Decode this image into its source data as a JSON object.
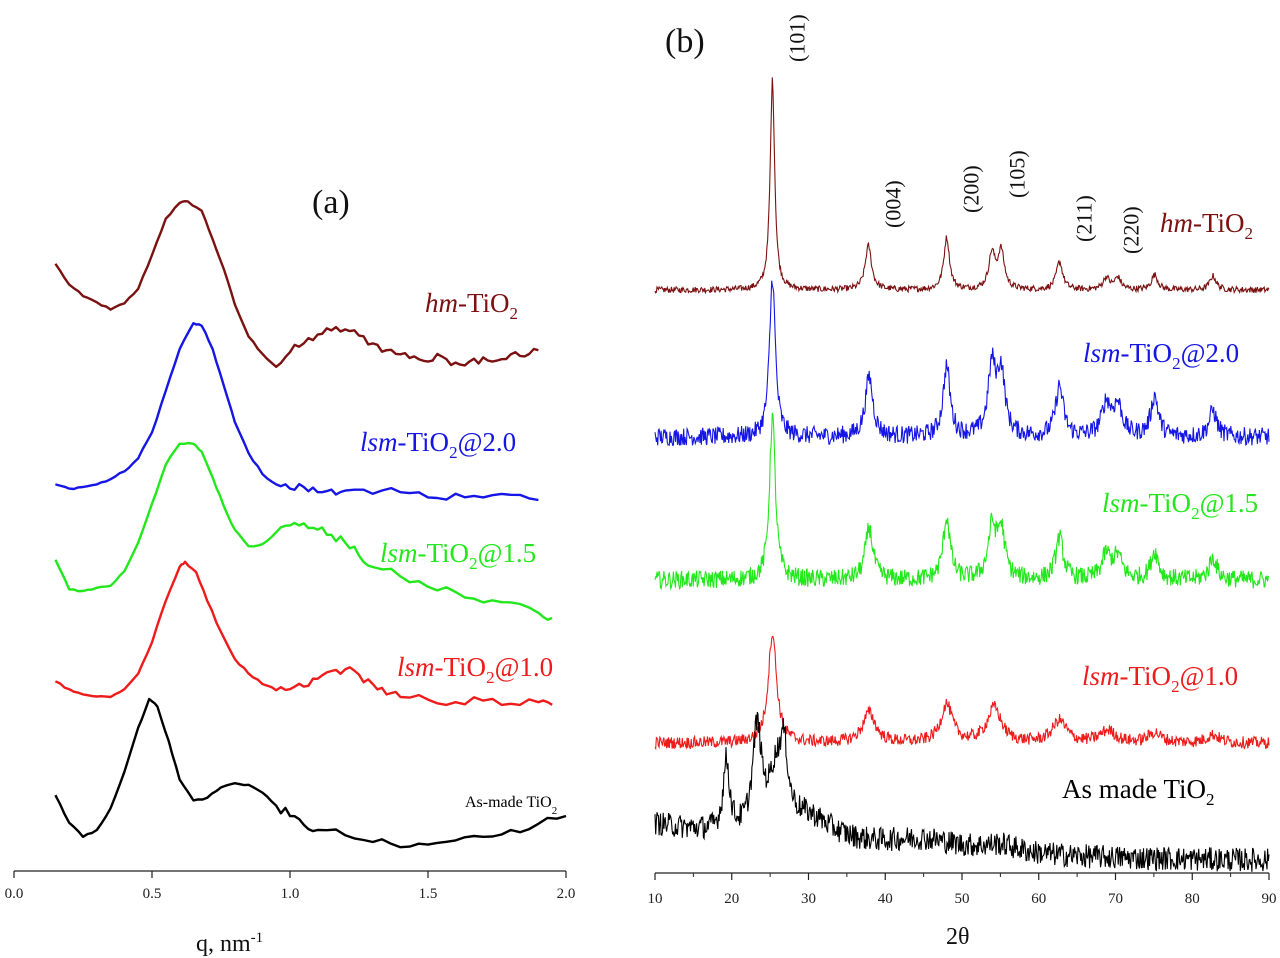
{
  "chart_data": [
    {
      "type": "line",
      "panel": "(a)",
      "xlabel": "q, nm",
      "xlabel_sup": "-1",
      "ylabel": "",
      "xlim": [
        0.0,
        2.0
      ],
      "xticks": [
        "0.0",
        "0.5",
        "1.0",
        "1.5",
        "2.0"
      ],
      "xtick_values": [
        0.0,
        0.5,
        1.0,
        1.5,
        2.0
      ],
      "y_axis_visible": false,
      "series": [
        {
          "name": "hm-TiO2",
          "label_italic": "hm",
          "label_main": "-TiO",
          "label_sub": "2",
          "label_tail": "",
          "color": "#7b1111",
          "x": [
            0.15,
            0.2,
            0.25,
            0.3,
            0.35,
            0.4,
            0.45,
            0.5,
            0.55,
            0.6,
            0.63,
            0.68,
            0.72,
            0.76,
            0.8,
            0.85,
            0.9,
            0.95,
            1.0,
            1.05,
            1.1,
            1.15,
            1.2,
            1.25,
            1.3,
            1.35,
            1.4,
            1.45,
            1.5,
            1.55,
            1.6,
            1.65,
            1.7,
            1.75,
            1.8,
            1.85,
            1.9
          ],
          "y": [
            2.08,
            1.68,
            1.46,
            1.34,
            1.2,
            1.32,
            1.6,
            2.25,
            2.95,
            3.25,
            3.28,
            3.1,
            2.55,
            1.98,
            1.3,
            0.68,
            0.35,
            0.1,
            0.38,
            0.55,
            0.72,
            0.8,
            0.82,
            0.7,
            0.55,
            0.42,
            0.34,
            0.3,
            0.2,
            0.3,
            0.18,
            0.2,
            0.28,
            0.22,
            0.34,
            0.3,
            0.42
          ]
        },
        {
          "name": "lsm-TiO2@2.0",
          "label_italic": "lsm",
          "label_main": "-TiO",
          "label_sub": "2",
          "label_tail": "@2.0",
          "color": "#1515e6",
          "x": [
            0.15,
            0.2,
            0.25,
            0.3,
            0.35,
            0.4,
            0.45,
            0.5,
            0.55,
            0.6,
            0.65,
            0.68,
            0.72,
            0.76,
            0.8,
            0.85,
            0.9,
            0.95,
            1.0,
            1.05,
            1.1,
            1.15,
            1.2,
            1.3,
            1.4,
            1.5,
            1.6,
            1.7,
            1.8,
            1.9
          ],
          "y": [
            0.3,
            0.22,
            0.25,
            0.3,
            0.4,
            0.55,
            0.8,
            1.3,
            2.1,
            2.9,
            3.4,
            3.35,
            2.9,
            2.2,
            1.5,
            0.9,
            0.5,
            0.3,
            0.22,
            0.25,
            0.15,
            0.2,
            0.18,
            0.12,
            0.15,
            0.05,
            0.12,
            0.05,
            0.1,
            0.0
          ]
        },
        {
          "name": "lsm-TiO2@1.5",
          "label_italic": "lsm",
          "label_main": "-TiO",
          "label_sub": "2",
          "label_tail": "@1.5",
          "color": "#22e81b",
          "x": [
            0.15,
            0.2,
            0.25,
            0.3,
            0.35,
            0.4,
            0.45,
            0.5,
            0.55,
            0.6,
            0.65,
            0.68,
            0.72,
            0.76,
            0.8,
            0.85,
            0.9,
            0.95,
            1.0,
            1.05,
            1.1,
            1.15,
            1.2,
            1.25,
            1.3,
            1.4,
            1.5,
            1.6,
            1.7,
            1.8,
            1.9,
            1.95
          ],
          "y": [
            1.12,
            0.55,
            0.52,
            0.58,
            0.62,
            0.9,
            1.45,
            2.2,
            2.95,
            3.35,
            3.35,
            3.2,
            2.7,
            2.15,
            1.7,
            1.38,
            1.42,
            1.65,
            1.78,
            1.82,
            1.7,
            1.6,
            1.45,
            1.2,
            0.98,
            0.8,
            0.6,
            0.5,
            0.3,
            0.3,
            0.1,
            0.0
          ]
        },
        {
          "name": "lsm-TiO2@1.0",
          "label_italic": "lsm",
          "label_main": "-TiO",
          "label_sub": "2",
          "label_tail": "@1.0",
          "color": "#ee1b1b",
          "x": [
            0.15,
            0.2,
            0.25,
            0.3,
            0.35,
            0.4,
            0.45,
            0.5,
            0.55,
            0.6,
            0.62,
            0.66,
            0.7,
            0.75,
            0.8,
            0.85,
            0.9,
            0.95,
            1.0,
            1.05,
            1.1,
            1.15,
            1.2,
            1.25,
            1.3,
            1.35,
            1.4,
            1.5,
            1.6,
            1.7,
            1.8,
            1.9,
            1.95
          ],
          "y": [
            0.55,
            0.4,
            0.3,
            0.26,
            0.25,
            0.4,
            0.7,
            1.3,
            2.1,
            2.75,
            2.85,
            2.65,
            2.1,
            1.5,
            0.98,
            0.7,
            0.5,
            0.38,
            0.4,
            0.45,
            0.6,
            0.75,
            0.78,
            0.68,
            0.5,
            0.3,
            0.25,
            0.2,
            0.15,
            0.18,
            0.12,
            0.15,
            0.1
          ]
        },
        {
          "name": "As-made TiO2",
          "label_italic": "",
          "label_main": "As-made TiO",
          "label_sub": "2",
          "label_tail": "",
          "color": "#000000",
          "x": [
            0.15,
            0.2,
            0.25,
            0.3,
            0.35,
            0.4,
            0.45,
            0.49,
            0.52,
            0.56,
            0.6,
            0.65,
            0.7,
            0.75,
            0.8,
            0.85,
            0.9,
            0.95,
            1.0,
            1.05,
            1.1,
            1.2,
            1.3,
            1.4,
            1.5,
            1.6,
            1.7,
            1.8,
            1.9,
            2.0
          ],
          "y": [
            1.15,
            0.62,
            0.35,
            0.48,
            0.9,
            1.6,
            2.45,
            3.0,
            2.85,
            2.2,
            1.45,
            1.05,
            1.1,
            1.3,
            1.38,
            1.35,
            1.2,
            0.95,
            0.75,
            0.58,
            0.48,
            0.38,
            0.25,
            0.15,
            0.2,
            0.28,
            0.35,
            0.48,
            0.6,
            0.75
          ]
        }
      ]
    },
    {
      "type": "line",
      "panel": "(b)",
      "xlabel": "2θ",
      "ylabel": "",
      "xlim": [
        10,
        90
      ],
      "xticks": [
        "10",
        "20",
        "30",
        "40",
        "50",
        "60",
        "70",
        "80",
        "90"
      ],
      "xtick_values": [
        10,
        20,
        30,
        40,
        50,
        60,
        70,
        80,
        90
      ],
      "y_axis_visible": false,
      "plane_labels": [
        {
          "text": "(101)",
          "x": 25.3
        },
        {
          "text": "(004)",
          "x": 37.8
        },
        {
          "text": "(200)",
          "x": 48.0
        },
        {
          "text": "(105)",
          "x": 54.0
        },
        {
          "text": "(211)",
          "x": 62.7
        },
        {
          "text": "(220)",
          "x": 68.8
        }
      ],
      "series": [
        {
          "name": "hm-TiO2",
          "label_italic": "hm",
          "label_main": "-TiO",
          "label_sub": "2",
          "label_tail": "",
          "color": "#7b1111",
          "peaks": [
            [
              25.3,
              210,
              0.35
            ],
            [
              37.8,
              44,
              0.5
            ],
            [
              48.0,
              52,
              0.45
            ],
            [
              53.9,
              35,
              0.5
            ],
            [
              55.1,
              38,
              0.5
            ],
            [
              62.7,
              28,
              0.5
            ],
            [
              68.8,
              12,
              0.5
            ],
            [
              70.3,
              12,
              0.5
            ],
            [
              75.1,
              15,
              0.5
            ],
            [
              82.7,
              14,
              0.5
            ]
          ],
          "noise": 3
        },
        {
          "name": "lsm-TiO2@2.0",
          "label_italic": "lsm",
          "label_main": "-TiO",
          "label_sub": "2",
          "label_tail": "@2.0",
          "color": "#1515e6",
          "peaks": [
            [
              25.3,
              160,
              0.45
            ],
            [
              37.9,
              60,
              0.6
            ],
            [
              48.0,
              70,
              0.55
            ],
            [
              53.9,
              68,
              0.6
            ],
            [
              55.1,
              62,
              0.6
            ],
            [
              62.7,
              50,
              0.6
            ],
            [
              68.8,
              32,
              0.7
            ],
            [
              70.3,
              30,
              0.7
            ],
            [
              75.1,
              40,
              0.6
            ],
            [
              82.7,
              26,
              0.6
            ]
          ],
          "noise": 9
        },
        {
          "name": "lsm-TiO2@1.5",
          "label_italic": "lsm",
          "label_main": "-TiO",
          "label_sub": "2",
          "label_tail": "@1.5",
          "color": "#22e81b",
          "peaks": [
            [
              25.3,
              165,
              0.45
            ],
            [
              37.9,
              52,
              0.6
            ],
            [
              48.0,
              62,
              0.55
            ],
            [
              53.9,
              50,
              0.6
            ],
            [
              55.1,
              48,
              0.6
            ],
            [
              62.7,
              42,
              0.6
            ],
            [
              68.8,
              24,
              0.7
            ],
            [
              70.3,
              22,
              0.7
            ],
            [
              75.1,
              28,
              0.6
            ],
            [
              82.7,
              22,
              0.6
            ]
          ],
          "noise": 9
        },
        {
          "name": "lsm-TiO2@1.0",
          "label_italic": "lsm",
          "label_main": "-TiO",
          "label_sub": "2",
          "label_tail": "@1.0",
          "color": "#ee1b1b",
          "peaks": [
            [
              25.3,
              110,
              0.65
            ],
            [
              37.9,
              30,
              1.0
            ],
            [
              48.0,
              38,
              0.9
            ],
            [
              54.2,
              35,
              1.1
            ],
            [
              62.7,
              22,
              1.1
            ],
            [
              69.0,
              12,
              1.2
            ],
            [
              75.1,
              10,
              1.0
            ],
            [
              82.7,
              8,
              1.0
            ]
          ],
          "noise": 6
        },
        {
          "name": "As made TiO2",
          "label_italic": "",
          "label_main": "As made TiO",
          "label_sub": "2",
          "label_tail": "",
          "color": "#000000",
          "peaks": [
            [
              19.3,
              70,
              0.5
            ],
            [
              23.3,
              100,
              0.7
            ],
            [
              25.8,
              55,
              1.2
            ],
            [
              26.8,
              60,
              0.6
            ],
            [
              30.0,
              25,
              4.0
            ],
            [
              45.0,
              12,
              6.0
            ],
            [
              55.0,
              8,
              3.0
            ]
          ],
          "noise": 12
        }
      ]
    }
  ]
}
